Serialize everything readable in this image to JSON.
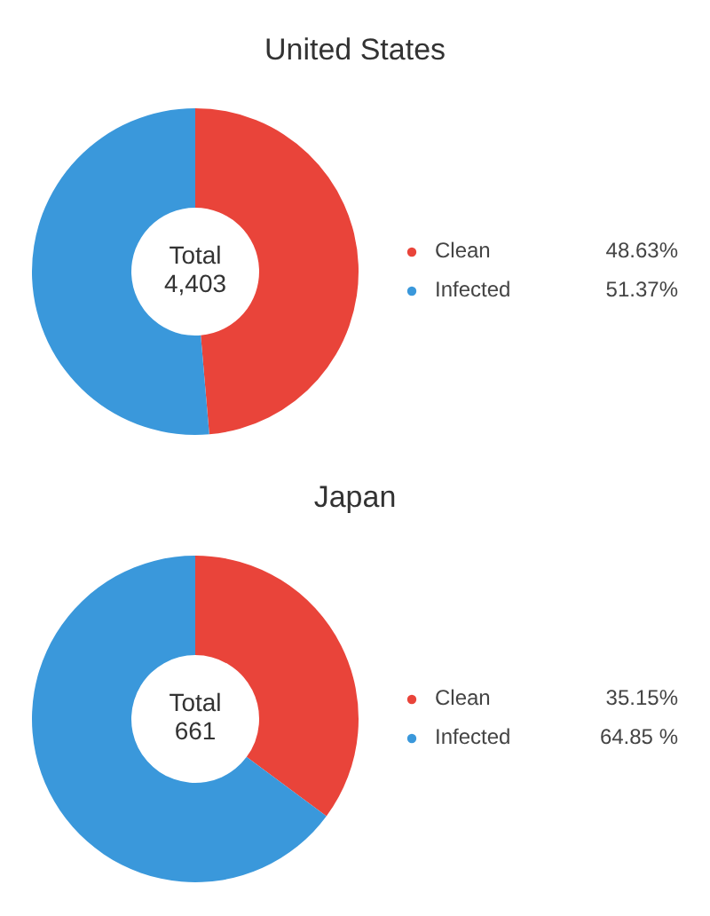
{
  "chart_data": [
    {
      "type": "donut",
      "title": "United States",
      "categories": [
        "Clean",
        "Infected"
      ],
      "values": [
        48.63,
        51.37
      ],
      "colors": [
        "#e9443a",
        "#3a98db"
      ],
      "value_labels": [
        "48.63%",
        "51.37%"
      ],
      "legend": "right",
      "annotations": [
        "Total",
        "4,403"
      ]
    },
    {
      "type": "donut",
      "title": "Japan",
      "categories": [
        "Clean",
        "Infected"
      ],
      "values": [
        35.15,
        64.85
      ],
      "colors": [
        "#e9443a",
        "#3a98db"
      ],
      "value_labels": [
        "35.15%",
        "64.85 %"
      ],
      "legend": "right",
      "annotations": [
        "Total",
        "661"
      ]
    }
  ]
}
